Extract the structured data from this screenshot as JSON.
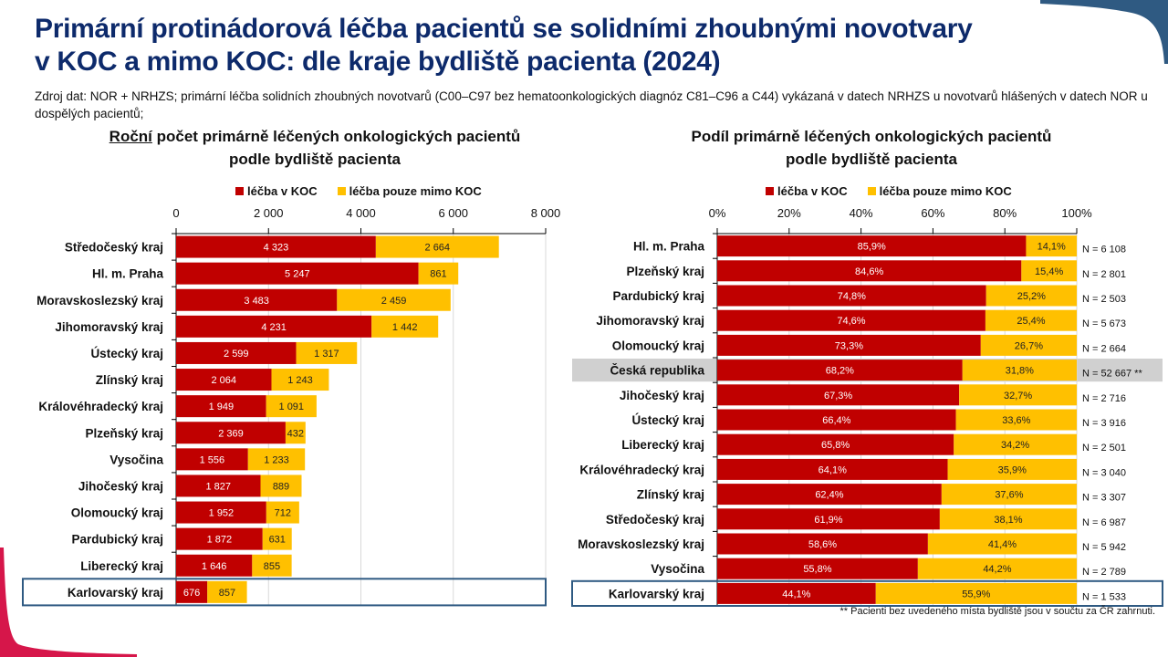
{
  "page": {
    "title_line1": "Primární protinádorová léčba pacientů se solidními zhoubnými novotvary",
    "title_line2": "v KOC a mimo KOC: dle kraje bydliště pacienta (2024)",
    "source": "Zdroj dat: NOR + NRHZS; primární léčba solidních zhoubných novotvarů (C00–C97 bez hematoonkologických diagnóz C81–C96 a C44) vykázaná v datech NRHZS u novotvarů hlášených v datech NOR u dospělých pacientů;",
    "footnote": "**  Pacienti bez uvedeného místa bydliště jsou v součtu za ČR zahrnuti.",
    "colors": {
      "koc": "#c00000",
      "mimo": "#ffc000",
      "title": "#0d2a6b",
      "highlight_box": "#2f5a82",
      "highlight_row": "#d0d0d0"
    }
  },
  "chart_data": [
    {
      "type": "bar",
      "orientation": "horizontal",
      "stacked": true,
      "title_underlined": "Roční",
      "title_rest": " počet primárně léčených onkologických pacientů",
      "title_line2": "podle bydliště pacienta",
      "legend": [
        "léčba v KOC",
        "léčba pouze mimo KOC"
      ],
      "legend_position": "top",
      "xlim": [
        0,
        8000
      ],
      "xticks": [
        0,
        2000,
        4000,
        6000,
        8000
      ],
      "xtick_labels": [
        "0",
        "2 000",
        "4 000",
        "6 000",
        "8 000"
      ],
      "grid": true,
      "highlight": "Karlovarský kraj",
      "categories": [
        "Středočeský kraj",
        "Hl. m. Praha",
        "Moravskoslezský kraj",
        "Jihomoravský kraj",
        "Ústecký kraj",
        "Zlínský kraj",
        "Královéhradecký kraj",
        "Plzeňský kraj",
        "Vysočina",
        "Jihočeský kraj",
        "Olomoucký kraj",
        "Pardubický kraj",
        "Liberecký kraj",
        "Karlovarský kraj"
      ],
      "series": [
        {
          "name": "léčba v KOC",
          "values": [
            4323,
            5247,
            3483,
            4231,
            2599,
            2064,
            1949,
            2369,
            1556,
            1827,
            1952,
            1872,
            1646,
            676
          ],
          "labels": [
            "4 323",
            "5 247",
            "3 483",
            "4 231",
            "2 599",
            "2 064",
            "1 949",
            "2 369",
            "1 556",
            "1 827",
            "1 952",
            "1 872",
            "1 646",
            "676"
          ]
        },
        {
          "name": "léčba pouze mimo KOC",
          "values": [
            2664,
            861,
            2459,
            1442,
            1317,
            1243,
            1091,
            432,
            1233,
            889,
            712,
            631,
            855,
            857
          ],
          "labels": [
            "2 664",
            "861",
            "2 459",
            "1 442",
            "1 317",
            "1 243",
            "1 091",
            "432",
            "1 233",
            "889",
            "712",
            "631",
            "855",
            "857"
          ]
        }
      ]
    },
    {
      "type": "bar",
      "orientation": "horizontal",
      "stacked": true,
      "percent": true,
      "title_line1": "Podíl primárně léčených onkologických pacientů",
      "title_line2": "podle bydliště pacienta",
      "legend": [
        "léčba v KOC",
        "léčba pouze mimo KOC"
      ],
      "legend_position": "top",
      "xlim": [
        0,
        100
      ],
      "xticks": [
        0,
        20,
        40,
        60,
        80,
        100
      ],
      "xtick_labels": [
        "0%",
        "20%",
        "40%",
        "60%",
        "80%",
        "100%"
      ],
      "grid": true,
      "highlight": "Karlovarský kraj",
      "reference_row": "Česká republika",
      "categories": [
        "Hl. m. Praha",
        "Plzeňský kraj",
        "Pardubický kraj",
        "Jihomoravský kraj",
        "Olomoucký kraj",
        "Česká republika",
        "Jihočeský kraj",
        "Ústecký kraj",
        "Liberecký kraj",
        "Královéhradecký kraj",
        "Zlínský kraj",
        "Středočeský kraj",
        "Moravskoslezský kraj",
        "Vysočina",
        "Karlovarský kraj"
      ],
      "series": [
        {
          "name": "léčba v KOC",
          "values": [
            85.9,
            84.6,
            74.8,
            74.6,
            73.3,
            68.2,
            67.3,
            66.4,
            65.8,
            64.1,
            62.4,
            61.9,
            58.6,
            55.8,
            44.1
          ],
          "labels": [
            "85,9%",
            "84,6%",
            "74,8%",
            "74,6%",
            "73,3%",
            "68,2%",
            "67,3%",
            "66,4%",
            "65,8%",
            "64,1%",
            "62,4%",
            "61,9%",
            "58,6%",
            "55,8%",
            "44,1%"
          ]
        },
        {
          "name": "léčba pouze mimo KOC",
          "values": [
            14.1,
            15.4,
            25.2,
            25.4,
            26.7,
            31.8,
            32.7,
            33.6,
            34.2,
            35.9,
            37.6,
            38.1,
            41.4,
            44.2,
            55.9
          ],
          "labels": [
            "14,1%",
            "15,4%",
            "25,2%",
            "25,4%",
            "26,7%",
            "31,8%",
            "32,7%",
            "33,6%",
            "34,2%",
            "35,9%",
            "37,6%",
            "38,1%",
            "41,4%",
            "44,2%",
            "55,9%"
          ]
        }
      ],
      "n_labels": [
        "N = 6 108",
        "N = 2 801",
        "N = 2 503",
        "N = 5 673",
        "N = 2 664",
        "N = 52 667 **",
        "N = 2 716",
        "N = 3 916",
        "N = 2 501",
        "N = 3 040",
        "N = 3 307",
        "N = 6 987",
        "N = 5 942",
        "N = 2 789",
        "N = 1 533"
      ]
    }
  ]
}
